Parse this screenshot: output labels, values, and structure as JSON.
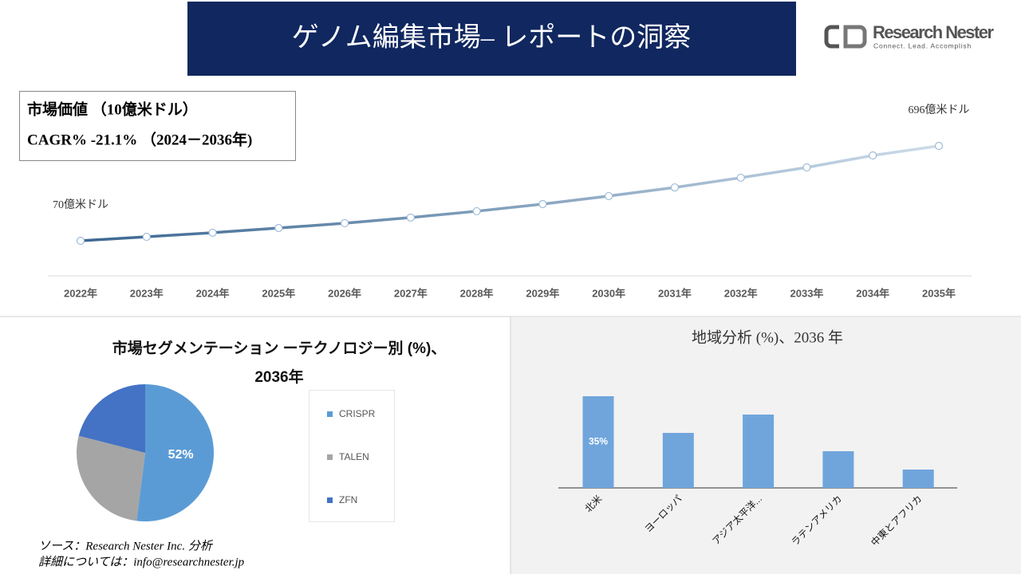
{
  "header": {
    "title": "ゲノム編集市場– レポートの洞察"
  },
  "logo": {
    "name": "Research Nester",
    "tagline": "Connect. Lead. Accomplish"
  },
  "info": {
    "line1": "市場価値 （10億米ドル）",
    "line2": "CAGR% -21.1% （2024－2036年)"
  },
  "chart_data": [
    {
      "type": "line",
      "categories": [
        "2022年",
        "2023年",
        "2024年",
        "2025年",
        "2026年",
        "2027年",
        "2028年",
        "2029年",
        "2030年",
        "2031年",
        "2032年",
        "2033年",
        "2034年",
        "2035年"
      ],
      "values": [
        70,
        96,
        123,
        154,
        186,
        223,
        265,
        312,
        365,
        422,
        486,
        554,
        633,
        696
      ],
      "value_labels": [
        "70億米ドル",
        null,
        null,
        null,
        null,
        null,
        null,
        null,
        null,
        null,
        null,
        null,
        null,
        "696億米ドル"
      ],
      "color": "#3b6791",
      "color_end": "#cddcea"
    },
    {
      "type": "pie",
      "title": "市場セグメンテーション ーテクノロジー別 (%)、2036年",
      "categories": [
        "CRISPR",
        "TALEN",
        "ZFN"
      ],
      "values": [
        52,
        27,
        21
      ],
      "value_labels": [
        "52%",
        null,
        null
      ],
      "colors": [
        "#5b9bd5",
        "#a5a5a5",
        "#4472c4"
      ]
    },
    {
      "type": "bar",
      "title": "地域分析 (%)、2036 年",
      "categories": [
        "北米",
        "ヨーロッパ",
        "アジア太平洋...",
        "ラテンアメリカ",
        "中東とアフリカ"
      ],
      "values": [
        35,
        21,
        28,
        14,
        7
      ],
      "value_labels": [
        "35%",
        null,
        null,
        null,
        null
      ],
      "color": "#70a5dc"
    }
  ],
  "footer": {
    "source": "ソース：Research Nester Inc. 分析",
    "contact": "詳細については：info@researchnester.jp"
  }
}
